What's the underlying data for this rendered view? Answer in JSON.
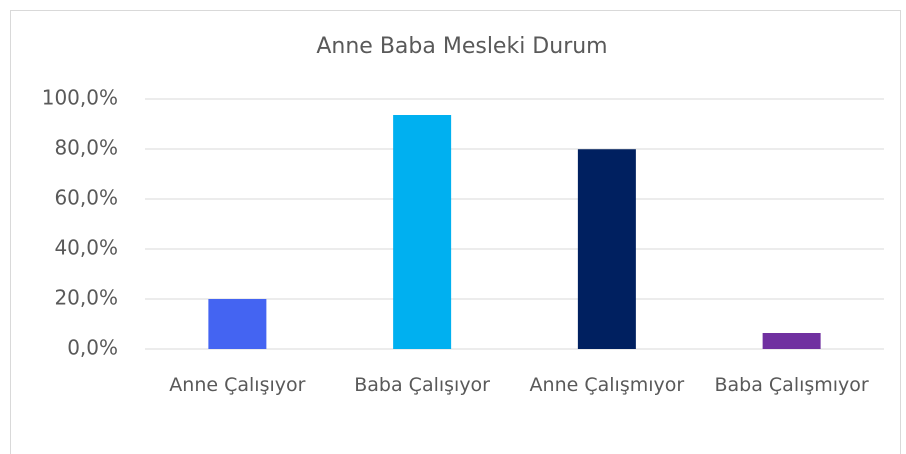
{
  "chart_data": {
    "type": "bar",
    "title": "Anne Baba Mesleki Durum",
    "categories": [
      "Anne Çalışıyor",
      "Baba Çalışıyor",
      "Anne Çalışmıyor",
      "Baba Çalışmıyor"
    ],
    "values": [
      20.0,
      93.6,
      79.9,
      6.4
    ],
    "colors": [
      "#4464f2",
      "#00b0f0",
      "#002060",
      "#7030a0"
    ],
    "ylim": [
      0,
      100
    ],
    "yticks": [
      {
        "value": 0,
        "label": "0,0%"
      },
      {
        "value": 20,
        "label": "20,0%"
      },
      {
        "value": 40,
        "label": "40,0%"
      },
      {
        "value": 60,
        "label": "60,0%"
      },
      {
        "value": 80,
        "label": "80,0%"
      },
      {
        "value": 100,
        "label": "100,0%"
      }
    ],
    "grid": true
  }
}
